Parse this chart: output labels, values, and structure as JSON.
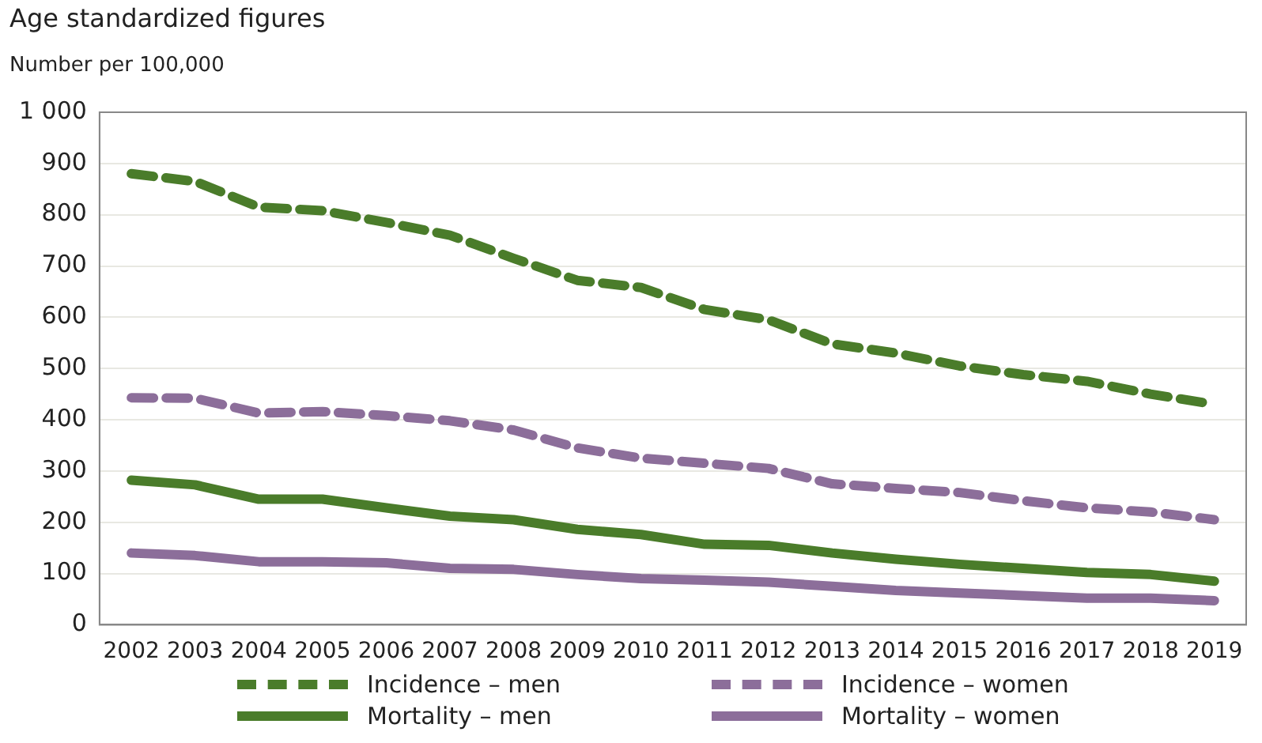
{
  "chart_data": {
    "type": "line",
    "title": "Age standardized figures",
    "subtitle": "Number per 100,000",
    "categories": [
      "2002",
      "2003",
      "2004",
      "2005",
      "2006",
      "2007",
      "2008",
      "2009",
      "2010",
      "2011",
      "2012",
      "2013",
      "2014",
      "2015",
      "2016",
      "2017",
      "2018",
      "2019"
    ],
    "series": [
      {
        "name": "Incidence – men",
        "color": "#4a7c2a",
        "line_style": "dashed",
        "values": [
          880,
          865,
          815,
          808,
          785,
          760,
          715,
          672,
          658,
          615,
          595,
          548,
          530,
          505,
          488,
          475,
          450,
          430
        ]
      },
      {
        "name": "Incidence – women",
        "color": "#8c6e9a",
        "line_style": "dashed",
        "values": [
          443,
          442,
          413,
          416,
          408,
          398,
          380,
          345,
          325,
          315,
          305,
          275,
          266,
          258,
          242,
          228,
          220,
          205
        ]
      },
      {
        "name": "Mortality – men",
        "color": "#4a7c2a",
        "line_style": "solid",
        "values": [
          282,
          273,
          245,
          245,
          228,
          212,
          205,
          186,
          176,
          157,
          155,
          140,
          128,
          118,
          110,
          102,
          98,
          85
        ]
      },
      {
        "name": "Mortality – women",
        "color": "#8c6e9a",
        "line_style": "solid",
        "values": [
          140,
          135,
          123,
          123,
          121,
          110,
          108,
          98,
          90,
          87,
          83,
          75,
          67,
          62,
          57,
          52,
          52,
          47
        ]
      }
    ],
    "ylim": [
      0,
      1000
    ],
    "yticks": [
      0,
      100,
      200,
      300,
      400,
      500,
      600,
      700,
      800,
      900,
      {
        "value": 1000,
        "label": "1 000"
      }
    ],
    "grid": "y",
    "legend": "bottom",
    "marker": "none"
  }
}
